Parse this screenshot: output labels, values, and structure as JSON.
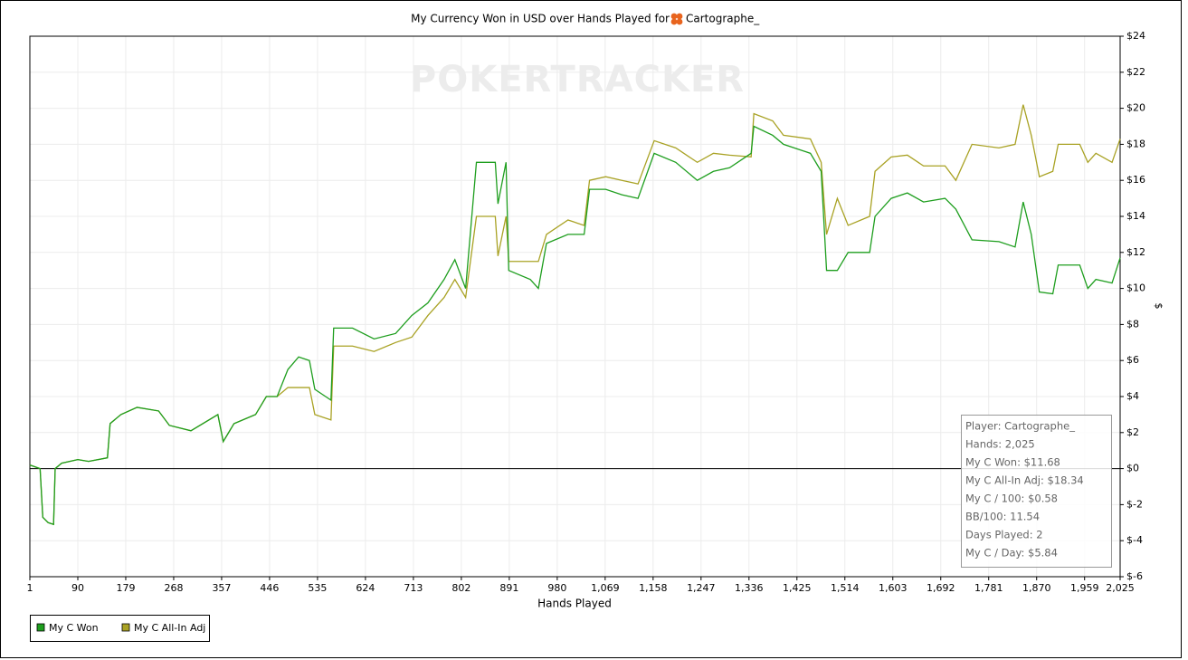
{
  "chart_data": {
    "type": "line",
    "title": "My Currency Won in USD over Hands Played for",
    "title_player": "Cartographe_",
    "watermark": "POKERTRACKER",
    "x_label": "Hands Played",
    "y_label": "$",
    "x": [
      1,
      20,
      25,
      35,
      45,
      48,
      60,
      90,
      110,
      145,
      150,
      170,
      200,
      240,
      260,
      300,
      350,
      360,
      380,
      420,
      440,
      460,
      480,
      500,
      520,
      530,
      560,
      565,
      600,
      640,
      680,
      710,
      740,
      770,
      790,
      810,
      830,
      865,
      870,
      885,
      890,
      930,
      945,
      960,
      1000,
      1030,
      1040,
      1070,
      1100,
      1130,
      1160,
      1200,
      1240,
      1270,
      1300,
      1340,
      1345,
      1380,
      1400,
      1450,
      1470,
      1480,
      1500,
      1520,
      1560,
      1570,
      1600,
      1630,
      1660,
      1700,
      1720,
      1750,
      1800,
      1830,
      1845,
      1860,
      1875,
      1900,
      1910,
      1950,
      1965,
      1980,
      2010,
      2025
    ],
    "series": [
      {
        "name": "My C Won",
        "color": "#1e9e1e",
        "values": [
          0.2,
          0,
          -2.7,
          -3.0,
          -3.1,
          0,
          0.3,
          0.5,
          0.4,
          0.6,
          2.5,
          3.0,
          3.4,
          3.2,
          2.4,
          2.1,
          3.0,
          1.5,
          2.5,
          3.0,
          4.0,
          4.0,
          5.5,
          6.2,
          6.0,
          4.4,
          3.8,
          7.8,
          7.8,
          7.2,
          7.5,
          8.5,
          9.2,
          10.5,
          11.6,
          10.0,
          17.0,
          17.0,
          14.7,
          17.0,
          11.0,
          10.5,
          10.0,
          12.5,
          13.0,
          13.0,
          15.5,
          15.5,
          15.2,
          15.0,
          17.5,
          17.0,
          16.0,
          16.5,
          16.7,
          17.5,
          19.0,
          18.5,
          18.0,
          17.5,
          16.5,
          11.0,
          11.0,
          12.0,
          12.0,
          14.0,
          15.0,
          15.3,
          14.8,
          15.0,
          14.4,
          12.7,
          12.6,
          12.3,
          14.8,
          13.0,
          9.8,
          9.7,
          11.3,
          11.3,
          10.0,
          10.5,
          10.3,
          11.7
        ]
      },
      {
        "name": "My C All-In Adj",
        "color": "#a9a224",
        "values": [
          0.2,
          0,
          -2.7,
          -3.0,
          -3.1,
          0,
          0.3,
          0.5,
          0.4,
          0.6,
          2.5,
          3.0,
          3.4,
          3.2,
          2.4,
          2.1,
          3.0,
          1.5,
          2.5,
          3.0,
          4.0,
          4.0,
          4.5,
          4.5,
          4.5,
          3.0,
          2.7,
          6.8,
          6.8,
          6.5,
          7.0,
          7.3,
          8.5,
          9.5,
          10.5,
          9.5,
          14.0,
          14.0,
          11.8,
          14.0,
          11.5,
          11.5,
          11.5,
          13.0,
          13.8,
          13.5,
          16.0,
          16.2,
          16.0,
          15.8,
          18.2,
          17.8,
          17.0,
          17.5,
          17.4,
          17.3,
          19.7,
          19.3,
          18.5,
          18.3,
          17.0,
          13.0,
          15.0,
          13.5,
          14.0,
          16.5,
          17.3,
          17.4,
          16.8,
          16.8,
          16.0,
          18.0,
          17.8,
          18.0,
          20.2,
          18.5,
          16.2,
          16.5,
          18.0,
          18.0,
          17.0,
          17.5,
          17.0,
          18.3
        ]
      }
    ],
    "xlim": [
      1,
      2025
    ],
    "xticks": [
      1,
      90,
      179,
      268,
      357,
      446,
      535,
      624,
      713,
      802,
      891,
      980,
      {
        "value": 1069,
        "label": "1,069"
      },
      {
        "value": 1158,
        "label": "1,158"
      },
      {
        "value": 1247,
        "label": "1,247"
      },
      {
        "value": 1336,
        "label": "1,336"
      },
      {
        "value": 1425,
        "label": "1,425"
      },
      {
        "value": 1514,
        "label": "1,514"
      },
      {
        "value": 1603,
        "label": "1,603"
      },
      {
        "value": 1692,
        "label": "1,692"
      },
      {
        "value": 1781,
        "label": "1,781"
      },
      {
        "value": 1870,
        "label": "1,870"
      },
      {
        "value": 1959,
        "label": "1,959"
      },
      {
        "value": 2025,
        "label": "2,025"
      }
    ],
    "ylim": [
      -6,
      24
    ],
    "yticks": [
      {
        "value": -6,
        "label": "$-6"
      },
      {
        "value": -4,
        "label": "$-4"
      },
      {
        "value": -2,
        "label": "$-2"
      },
      {
        "value": 0,
        "label": "$0"
      },
      {
        "value": 2,
        "label": "$2"
      },
      {
        "value": 4,
        "label": "$4"
      },
      {
        "value": 6,
        "label": "$6"
      },
      {
        "value": 8,
        "label": "$8"
      },
      {
        "value": 10,
        "label": "$10"
      },
      {
        "value": 12,
        "label": "$12"
      },
      {
        "value": 14,
        "label": "$14"
      },
      {
        "value": 16,
        "label": "$16"
      },
      {
        "value": 18,
        "label": "$18"
      },
      {
        "value": 20,
        "label": "$20"
      },
      {
        "value": 22,
        "label": "$22"
      },
      {
        "value": 24,
        "label": "$24"
      }
    ],
    "grid": true,
    "info_box": [
      "Player: Cartographe_",
      "Hands: 2,025",
      "My C Won: $11.68",
      "My C All-In Adj: $18.34",
      "My C / 100: $0.58",
      "BB/100: 11.54",
      "Days Played: 2",
      "My C / Day: $5.84"
    ]
  }
}
